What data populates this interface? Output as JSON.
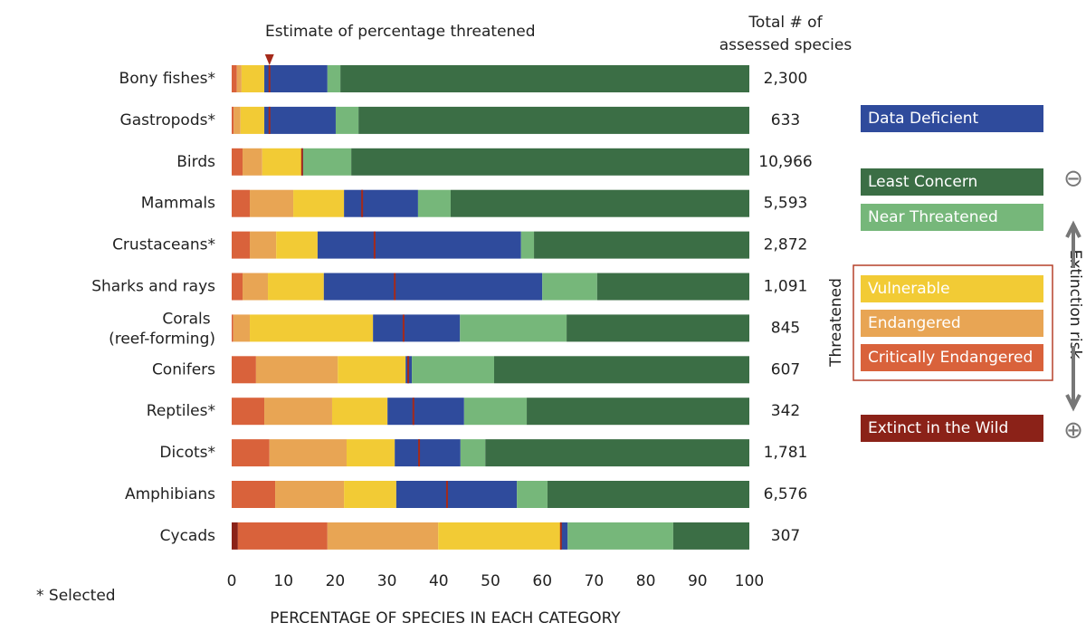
{
  "chart_data": {
    "type": "bar",
    "orientation": "horizontal",
    "stacked": true,
    "annotation": "Estimate of percentage threatened",
    "totals_title": [
      "Total # of",
      "assessed species"
    ],
    "xlabel": "PERCENTAGE OF SPECIES IN EACH CATEGORY",
    "note": "* Selected",
    "group_label": "Threatened",
    "risk_label": "Extinction risk",
    "risk_low": "⊖",
    "risk_high": "⊕",
    "categories": [
      "Bony fishes*",
      "Gastropods*",
      "Birds",
      "Mammals",
      "Crustaceans*",
      "Sharks and rays",
      "Corals (reef-forming)",
      "Conifers",
      "Reptiles*",
      "Dicots*",
      "Amphibians",
      "Cycads"
    ],
    "series": [
      {
        "name": "Extinct in the Wild",
        "color": "#8b2218",
        "values": [
          0,
          0,
          0,
          0,
          0,
          0,
          0,
          0,
          0,
          0,
          0,
          1.2
        ]
      },
      {
        "name": "Critically Endangered",
        "color": "#d9623b",
        "values": [
          1.0,
          0.4,
          2.1,
          3.5,
          3.5,
          2.1,
          0.3,
          4.7,
          6.3,
          7.3,
          8.4,
          17.3
        ]
      },
      {
        "name": "Endangered",
        "color": "#e8a554",
        "values": [
          0.9,
          1.3,
          3.8,
          8.4,
          5.1,
          4.9,
          3.2,
          15.8,
          13.1,
          14.9,
          13.3,
          21.4
        ]
      },
      {
        "name": "Vulnerable",
        "color": "#f2cb35",
        "values": [
          4.4,
          4.6,
          7.6,
          9.8,
          8.0,
          10.8,
          23.8,
          13.1,
          10.7,
          9.3,
          10.1,
          23.6
        ]
      },
      {
        "name": "Data Deficient",
        "color": "#2f4b9c",
        "values": [
          12.2,
          13.8,
          0.3,
          14.3,
          39.3,
          42.2,
          16.8,
          1.2,
          14.8,
          12.7,
          23.3,
          1.4
        ]
      },
      {
        "name": "Near Threatened",
        "color": "#76b77a",
        "values": [
          2.5,
          4.4,
          9.3,
          6.3,
          2.5,
          10.6,
          20.6,
          15.9,
          12.1,
          4.8,
          5.9,
          20.4
        ]
      },
      {
        "name": "Least Concern",
        "color": "#3b6e45",
        "values": [
          79.0,
          75.5,
          76.9,
          57.7,
          41.6,
          29.4,
          35.3,
          49.3,
          43.0,
          51.0,
          39.0,
          14.7
        ]
      }
    ],
    "estimate": {
      "color": "#a52a1a",
      "values": [
        7.3,
        7.3,
        13.6,
        25.2,
        27.6,
        31.5,
        33.2,
        34.1,
        35.1,
        36.2,
        41.6,
        63.6
      ]
    },
    "totals": {
      "values": [
        2300,
        633,
        10966,
        5593,
        2872,
        1091,
        845,
        607,
        342,
        1781,
        6576,
        307
      ],
      "value_labels": [
        "2,300",
        "633",
        "10,966",
        "5,593",
        "2,872",
        "1,091",
        "845",
        "607",
        "342",
        "1,781",
        "6,576",
        "307"
      ]
    },
    "xlim": [
      0,
      100
    ],
    "xticks": [
      0,
      10,
      20,
      30,
      40,
      50,
      60,
      70,
      80,
      90,
      100
    ]
  }
}
